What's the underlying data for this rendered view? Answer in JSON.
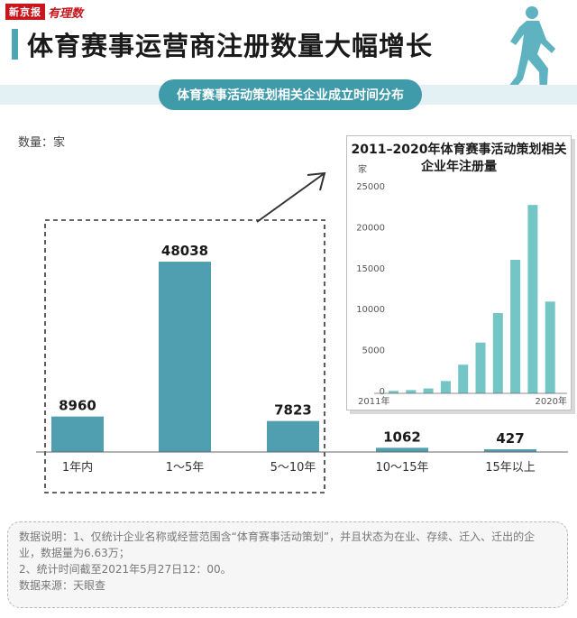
{
  "header": {
    "logo_box": "新京报",
    "logo_script": "有理数",
    "title": "体育赛事运营商注册数量大幅增长",
    "subtitle": "体育赛事活动策划相关企业成立时间分布"
  },
  "unit_label": "数量：家",
  "colors": {
    "accent": "#4da6b3",
    "bar_main": "#4f9fb0",
    "bar_inset": "#74c5c5"
  },
  "chart_data": [
    {
      "type": "bar",
      "title": "体育赛事活动策划相关企业成立时间分布",
      "ylabel": "数量：家",
      "categories": [
        "1年内",
        "1～5年",
        "5～10年",
        "10～15年",
        "15年以上"
      ],
      "values": [
        8960,
        48038,
        7823,
        1062,
        427
      ],
      "data_labels": [
        "8960",
        "48038",
        "7823",
        "1062",
        "427"
      ],
      "ylim": [
        0,
        55000
      ],
      "grid": false,
      "highlight_categories": [
        "1年内",
        "1～5年",
        "5～10年"
      ]
    },
    {
      "type": "bar",
      "title": "2011–2020年体育赛事活动策划相关企业年注册量",
      "ylabel": "家",
      "x": [
        2011,
        2012,
        2013,
        2014,
        2015,
        2016,
        2017,
        2018,
        2019,
        2020
      ],
      "x_tick_labels": [
        "2011年",
        "2020年"
      ],
      "values": [
        300,
        400,
        600,
        1500,
        3500,
        6200,
        9800,
        16300,
        23000,
        11200
      ],
      "yticks": [
        "0",
        "5000",
        "10000",
        "15000",
        "20000",
        "25000"
      ],
      "ylim": [
        0,
        25000
      ],
      "grid": false
    }
  ],
  "notes": {
    "line1": "数据说明：1、仅统计企业名称或经营范围含“体育赛事活动策划”，并且状态为在业、存续、迁入、迁出的企业，数据量为6.63万；",
    "line2": "2、统计时间截至2021年5月27日12：00。",
    "source": "数据来源：天眼查"
  }
}
